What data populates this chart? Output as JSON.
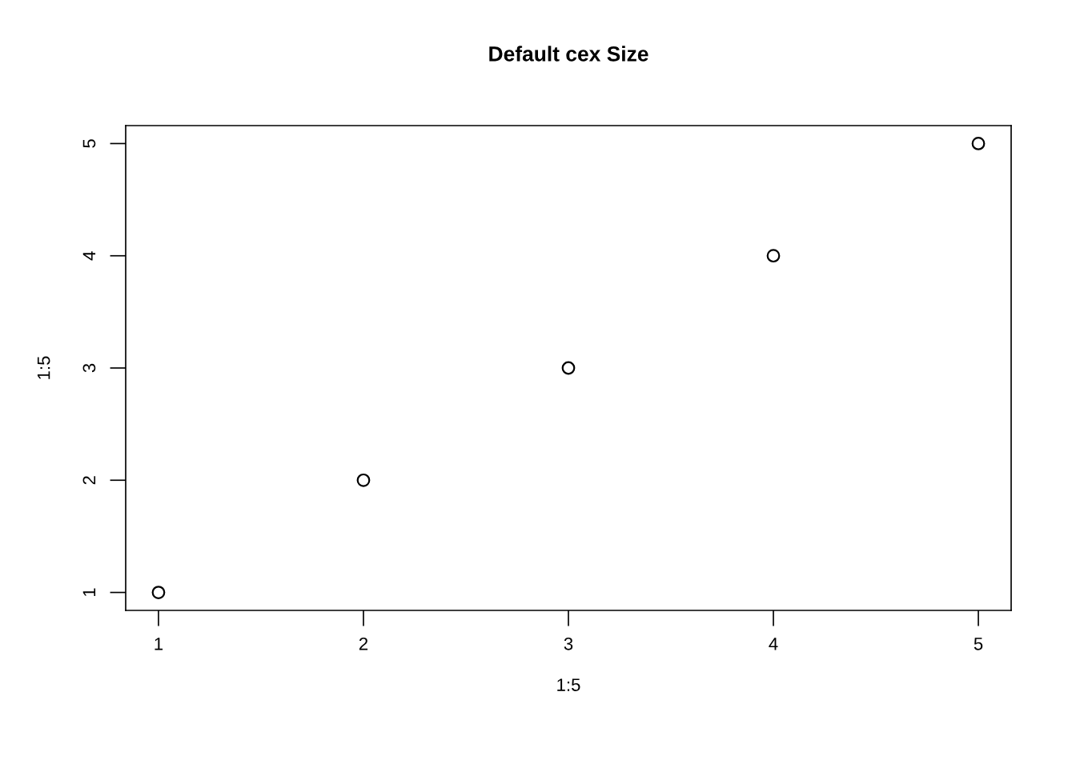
{
  "chart_data": {
    "type": "scatter",
    "title": "Default cex Size",
    "xlabel": "1:5",
    "ylabel": "1:5",
    "x": [
      1,
      2,
      3,
      4,
      5
    ],
    "series": [
      {
        "color": "#000000",
        "values": [
          1,
          2,
          3,
          4,
          5
        ]
      }
    ],
    "marker": "circle",
    "xlim": [
      0.84,
      5.16
    ],
    "ylim": [
      0.84,
      5.16
    ],
    "xticks": [
      1,
      2,
      3,
      4,
      5
    ],
    "yticks": [
      1,
      2,
      3,
      4,
      5
    ],
    "grid": false
  }
}
